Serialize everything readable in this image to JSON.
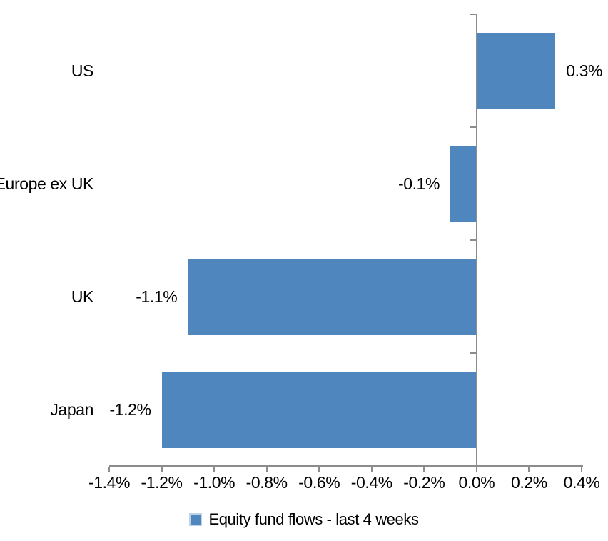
{
  "chart_data": {
    "type": "bar",
    "orientation": "horizontal",
    "categories": [
      "US",
      "Europe ex UK",
      "UK",
      "Japan"
    ],
    "series": [
      {
        "name": "Equity fund flows - last 4 weeks",
        "values": [
          0.3,
          -0.1,
          -1.1,
          -1.2
        ],
        "value_labels": [
          "0.3%",
          "-0.1%",
          "-1.1%",
          "-1.2%"
        ]
      }
    ],
    "xlim": [
      -1.4,
      0.4
    ],
    "x_tick_step": 0.2,
    "x_tick_labels": [
      "-1.4%",
      "-1.2%",
      "-1.0%",
      "-0.8%",
      "-0.6%",
      "-0.4%",
      "-0.2%",
      "0.0%",
      "0.2%",
      "0.4%"
    ],
    "grid": false,
    "legend": {
      "position": "bottom",
      "label": "Equity fund flows - last 4 weeks"
    },
    "colors": {
      "bar": "#4E86BD",
      "legend_marker_border": "#BED3E8",
      "axis": "#8C8C8C",
      "text": "#000000",
      "background": "#FFFFFF"
    }
  }
}
